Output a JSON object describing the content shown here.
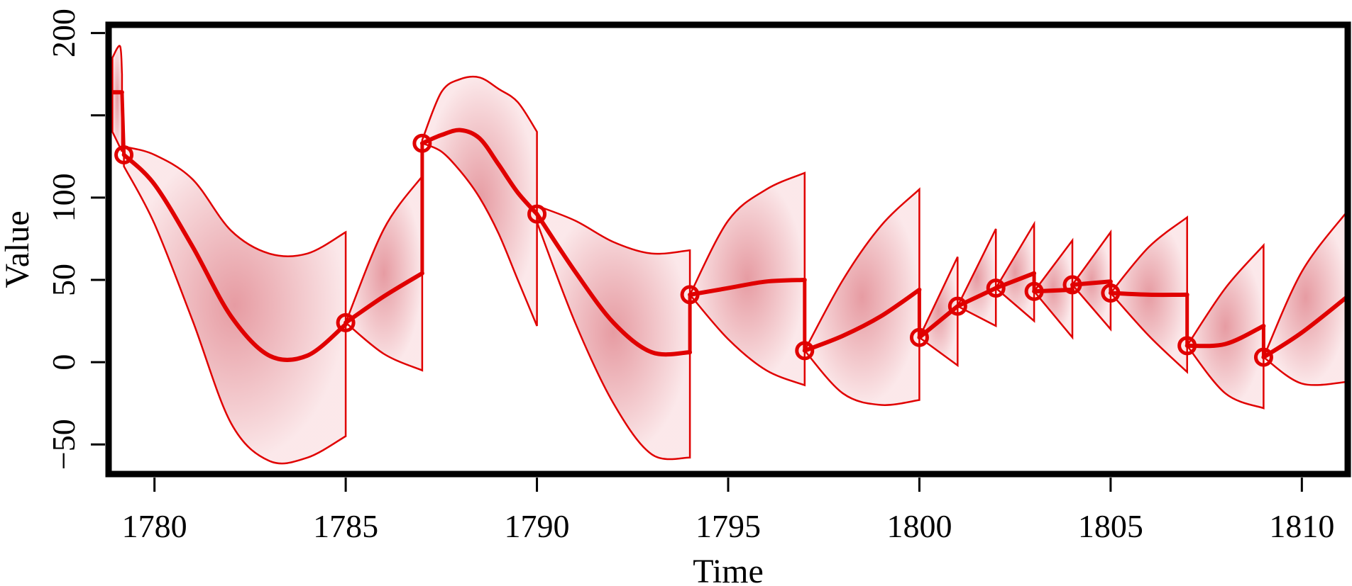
{
  "chart_data": {
    "type": "line",
    "title": "",
    "xlabel": "Time",
    "ylabel": "Value",
    "xlim": [
      1778.8,
      1811.2
    ],
    "ylim": [
      -68,
      205
    ],
    "xticks": [
      1780,
      1785,
      1790,
      1795,
      1800,
      1805,
      1810
    ],
    "yticks": [
      -50,
      0,
      50,
      100,
      200
    ],
    "yticks_unlabeled": [
      150
    ],
    "grid": false,
    "colors": {
      "series": "#e00000",
      "band": "#e8a0a6",
      "frame": "#000000"
    },
    "observations": {
      "x": [
        1779.2,
        1785,
        1787,
        1790,
        1794,
        1797,
        1800,
        1801,
        1802,
        1803,
        1804,
        1805,
        1807,
        1809
      ],
      "y": [
        126,
        24,
        133,
        90,
        41,
        7,
        15,
        34,
        45,
        43,
        47,
        42,
        10,
        3
      ]
    },
    "segments": [
      {
        "x0": 1778.9,
        "x1": 1779.15,
        "mean": [
          [
            1778.9,
            164
          ],
          [
            1779.15,
            164
          ]
        ],
        "upper": [
          [
            1778.9,
            185
          ],
          [
            1779.1,
            192
          ],
          [
            1779.15,
            175
          ]
        ],
        "lower": [
          [
            1778.9,
            140
          ],
          [
            1779.15,
            128
          ]
        ]
      },
      {
        "x0": 1779.2,
        "x1": 1785,
        "mean": [
          [
            1779.2,
            126
          ],
          [
            1780,
            108
          ],
          [
            1781,
            70
          ],
          [
            1782,
            28
          ],
          [
            1783,
            4
          ],
          [
            1784,
            4
          ],
          [
            1785,
            23
          ]
        ],
        "upper": [
          [
            1779.2,
            131
          ],
          [
            1780,
            126
          ],
          [
            1781,
            111
          ],
          [
            1782,
            80
          ],
          [
            1783,
            66
          ],
          [
            1784,
            66
          ],
          [
            1785,
            79
          ]
        ],
        "lower": [
          [
            1779.2,
            119
          ],
          [
            1780,
            84
          ],
          [
            1781,
            25
          ],
          [
            1782,
            -37
          ],
          [
            1783,
            -60
          ],
          [
            1784,
            -58
          ],
          [
            1785,
            -45
          ]
        ]
      },
      {
        "x0": 1785,
        "x1": 1787,
        "mean": [
          [
            1785,
            24
          ],
          [
            1786,
            40
          ],
          [
            1787,
            54
          ]
        ],
        "upper": [
          [
            1785,
            24
          ],
          [
            1786,
            81
          ],
          [
            1787,
            113
          ]
        ],
        "lower": [
          [
            1785,
            24
          ],
          [
            1786,
            5
          ],
          [
            1787,
            -5
          ]
        ]
      },
      {
        "x0": 1787,
        "x1": 1790,
        "mean": [
          [
            1787,
            133
          ],
          [
            1787.5,
            138
          ],
          [
            1788,
            141
          ],
          [
            1788.5,
            136
          ],
          [
            1789,
            120
          ],
          [
            1789.5,
            103
          ],
          [
            1790,
            90
          ]
        ],
        "upper": [
          [
            1787,
            135
          ],
          [
            1787.5,
            164
          ],
          [
            1788,
            172
          ],
          [
            1788.5,
            173
          ],
          [
            1789,
            166
          ],
          [
            1789.5,
            158
          ],
          [
            1790,
            140
          ]
        ],
        "lower": [
          [
            1787,
            133
          ],
          [
            1787.5,
            128
          ],
          [
            1788,
            116
          ],
          [
            1788.5,
            100
          ],
          [
            1789,
            78
          ],
          [
            1789.5,
            50
          ],
          [
            1790,
            22
          ]
        ]
      },
      {
        "x0": 1790,
        "x1": 1794,
        "mean": [
          [
            1790,
            90
          ],
          [
            1791,
            55
          ],
          [
            1792,
            24
          ],
          [
            1793,
            6
          ],
          [
            1794,
            6
          ]
        ],
        "upper": [
          [
            1790,
            95
          ],
          [
            1791,
            86
          ],
          [
            1792,
            73
          ],
          [
            1793,
            66
          ],
          [
            1794,
            68
          ]
        ],
        "lower": [
          [
            1790,
            85
          ],
          [
            1791,
            24
          ],
          [
            1792,
            -25
          ],
          [
            1793,
            -56
          ],
          [
            1794,
            -58
          ]
        ]
      },
      {
        "x0": 1794,
        "x1": 1797,
        "mean": [
          [
            1794,
            41
          ],
          [
            1795,
            45
          ],
          [
            1796,
            49
          ],
          [
            1797,
            50
          ]
        ],
        "upper": [
          [
            1794,
            41
          ],
          [
            1795,
            86
          ],
          [
            1796,
            105
          ],
          [
            1797,
            115
          ]
        ],
        "lower": [
          [
            1794,
            41
          ],
          [
            1795,
            14
          ],
          [
            1796,
            -5
          ],
          [
            1797,
            -14
          ]
        ]
      },
      {
        "x0": 1797,
        "x1": 1800,
        "mean": [
          [
            1797,
            7
          ],
          [
            1798,
            16
          ],
          [
            1799,
            28
          ],
          [
            1800,
            44
          ]
        ],
        "upper": [
          [
            1797,
            7
          ],
          [
            1798,
            50
          ],
          [
            1799,
            83
          ],
          [
            1800,
            105
          ]
        ],
        "lower": [
          [
            1797,
            7
          ],
          [
            1798,
            -19
          ],
          [
            1799,
            -26
          ],
          [
            1800,
            -23
          ]
        ]
      },
      {
        "x0": 1800,
        "x1": 1801,
        "mean": [
          [
            1800,
            15
          ],
          [
            1801,
            34
          ]
        ],
        "upper": [
          [
            1800,
            15
          ],
          [
            1801,
            64
          ]
        ],
        "lower": [
          [
            1800,
            15
          ],
          [
            1801,
            -2
          ]
        ]
      },
      {
        "x0": 1801,
        "x1": 1802,
        "mean": [
          [
            1801,
            34
          ],
          [
            1802,
            45
          ]
        ],
        "upper": [
          [
            1801,
            34
          ],
          [
            1802,
            81
          ]
        ],
        "lower": [
          [
            1801,
            34
          ],
          [
            1802,
            22
          ]
        ]
      },
      {
        "x0": 1802,
        "x1": 1803,
        "mean": [
          [
            1802,
            45
          ],
          [
            1803,
            54
          ]
        ],
        "upper": [
          [
            1802,
            45
          ],
          [
            1803,
            84
          ]
        ],
        "lower": [
          [
            1802,
            45
          ],
          [
            1803,
            25
          ]
        ]
      },
      {
        "x0": 1803,
        "x1": 1804,
        "mean": [
          [
            1803,
            43
          ],
          [
            1804,
            44
          ]
        ],
        "upper": [
          [
            1803,
            43
          ],
          [
            1804,
            74
          ]
        ],
        "lower": [
          [
            1803,
            43
          ],
          [
            1804,
            15
          ]
        ]
      },
      {
        "x0": 1804,
        "x1": 1805,
        "mean": [
          [
            1804,
            47
          ],
          [
            1805,
            49
          ]
        ],
        "upper": [
          [
            1804,
            47
          ],
          [
            1805,
            79
          ]
        ],
        "lower": [
          [
            1804,
            47
          ],
          [
            1805,
            20
          ]
        ]
      },
      {
        "x0": 1805,
        "x1": 1807,
        "mean": [
          [
            1805,
            42
          ],
          [
            1806,
            41
          ],
          [
            1807,
            41
          ]
        ],
        "upper": [
          [
            1805,
            42
          ],
          [
            1806,
            70
          ],
          [
            1807,
            88
          ]
        ],
        "lower": [
          [
            1805,
            42
          ],
          [
            1806,
            16
          ],
          [
            1807,
            -6
          ]
        ]
      },
      {
        "x0": 1807,
        "x1": 1809,
        "mean": [
          [
            1807,
            10
          ],
          [
            1808,
            11
          ],
          [
            1809,
            22
          ]
        ],
        "upper": [
          [
            1807,
            10
          ],
          [
            1808,
            45
          ],
          [
            1809,
            71
          ]
        ],
        "lower": [
          [
            1807,
            10
          ],
          [
            1808,
            -19
          ],
          [
            1809,
            -28
          ]
        ]
      },
      {
        "x0": 1809,
        "x1": 1811.2,
        "mean": [
          [
            1809,
            3
          ],
          [
            1810,
            18
          ],
          [
            1811.2,
            40
          ]
        ],
        "upper": [
          [
            1809,
            3
          ],
          [
            1810,
            55
          ],
          [
            1811.2,
            92
          ]
        ],
        "lower": [
          [
            1809,
            3
          ],
          [
            1810,
            -13
          ],
          [
            1811.2,
            -12
          ]
        ]
      }
    ]
  }
}
